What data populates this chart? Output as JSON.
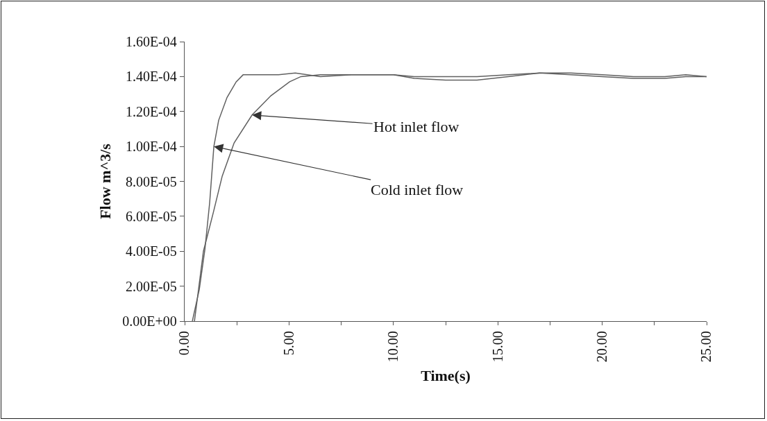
{
  "chart_data": {
    "type": "line",
    "xlabel": "Time(s)",
    "ylabel": "Flow m^3/s",
    "xlim": [
      0,
      25
    ],
    "ylim": [
      0,
      0.00016
    ],
    "xticks": [
      {
        "value": 0,
        "label": "0.00"
      },
      {
        "value": 2.5,
        "label": null
      },
      {
        "value": 5,
        "label": "5.00"
      },
      {
        "value": 7.5,
        "label": null
      },
      {
        "value": 10,
        "label": "10.00"
      },
      {
        "value": 12.5,
        "label": null
      },
      {
        "value": 15,
        "label": "15.00"
      },
      {
        "value": 17.5,
        "label": null
      },
      {
        "value": 20,
        "label": "20.00"
      },
      {
        "value": 22.5,
        "label": null
      },
      {
        "value": 25,
        "label": "25.00"
      }
    ],
    "yticks": [
      {
        "value": 0,
        "label": "0.00E+00"
      },
      {
        "value": 2e-05,
        "label": "2.00E-05"
      },
      {
        "value": 4e-05,
        "label": "4.00E-05"
      },
      {
        "value": 6e-05,
        "label": "6.00E-05"
      },
      {
        "value": 8e-05,
        "label": "8.00E-05"
      },
      {
        "value": 0.0001,
        "label": "1.00E-04"
      },
      {
        "value": 0.00012,
        "label": "1.20E-04"
      },
      {
        "value": 0.00014,
        "label": "1.40E-04"
      },
      {
        "value": 0.00016,
        "label": "1.60E-04"
      }
    ],
    "grid": false,
    "marker": "none",
    "line_style": "solid",
    "series": [
      {
        "color": "#606060",
        "x": [
          0.37,
          0.7,
          0.97,
          1.2,
          1.4,
          1.63,
          2.03,
          2.47,
          2.8,
          3.5,
          4.5,
          5.3,
          6.5,
          8,
          10,
          11,
          12.5,
          14,
          15.5,
          17,
          18.5,
          20,
          21.5,
          23,
          24,
          25
        ],
        "values": [
          0,
          1.8e-05,
          4.1e-05,
          6.8e-05,
          0.0001,
          0.000115,
          0.000128,
          0.000137,
          0.000141,
          0.000141,
          0.000141,
          0.000142,
          0.00014,
          0.000141,
          0.000141,
          0.00014,
          0.00014,
          0.00014,
          0.000141,
          0.000142,
          0.000141,
          0.00014,
          0.000139,
          0.000139,
          0.00014,
          0.00014
        ]
      },
      {
        "color": "#606060",
        "x": [
          0.47,
          0.9,
          1.37,
          1.8,
          2.37,
          3.23,
          4.13,
          5.03,
          5.57,
          6.5,
          8,
          10,
          11,
          12.5,
          14,
          15.5,
          17,
          18.5,
          20,
          21.5,
          23,
          24,
          25
        ],
        "values": [
          0,
          4e-05,
          6.2e-05,
          8.3e-05,
          0.000102,
          0.000118,
          0.000129,
          0.000137,
          0.00014,
          0.000141,
          0.000141,
          0.000141,
          0.000139,
          0.000138,
          0.000138,
          0.00014,
          0.000142,
          0.000142,
          0.000141,
          0.00014,
          0.00014,
          0.000141,
          0.00014
        ]
      }
    ],
    "annotations": [
      {
        "text": "Hot inlet flow",
        "x": 3.23,
        "y": 0.000118
      },
      {
        "text": "Cold inlet flow",
        "x": 1.4,
        "y": 0.0001
      }
    ]
  }
}
